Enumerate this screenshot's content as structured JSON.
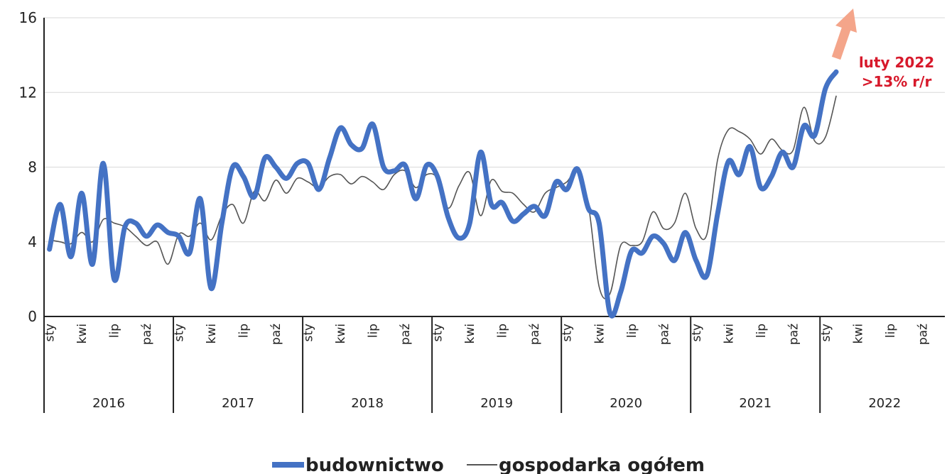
{
  "chart_data": {
    "type": "line",
    "ylim": [
      0,
      16
    ],
    "y_ticks": [
      "0",
      "4",
      "8",
      "12",
      "16"
    ],
    "grid": true,
    "legend_position": "bottom",
    "month_ticks": [
      "sty",
      "kwi",
      "lip",
      "paź"
    ],
    "years": [
      "2016",
      "2017",
      "2018",
      "2019",
      "2020",
      "2021",
      "2022"
    ],
    "x_start": "2016-01",
    "series": [
      {
        "name": "budownictwo",
        "color": "#4472c4",
        "values": [
          3.6,
          6.0,
          3.2,
          6.6,
          2.8,
          8.2,
          2.0,
          4.8,
          5.0,
          4.3,
          4.9,
          4.5,
          4.3,
          3.4,
          6.3,
          1.5,
          5.0,
          8.0,
          7.5,
          6.4,
          8.5,
          8.0,
          7.4,
          8.2,
          8.2,
          6.8,
          8.5,
          10.1,
          9.2,
          9.0,
          10.3,
          8.0,
          7.8,
          8.1,
          6.3,
          8.1,
          7.5,
          5.3,
          4.2,
          5.0,
          8.8,
          6.0,
          6.1,
          5.1,
          5.5,
          5.9,
          5.4,
          7.2,
          6.8,
          7.9,
          5.8,
          5.0,
          0.2,
          1.3,
          3.5,
          3.4,
          4.3,
          3.9,
          3.0,
          4.5,
          3.0,
          2.2,
          5.5,
          8.3,
          7.6,
          9.1,
          6.9,
          7.5,
          8.8,
          8.0,
          10.2,
          9.7,
          12.2,
          13.1
        ],
        "values_note": ""
      },
      {
        "name": "gospodarka ogółem",
        "color": "#555555",
        "values": [
          4.1,
          4.0,
          3.9,
          4.5,
          4.0,
          5.2,
          5.0,
          4.8,
          4.3,
          3.8,
          4.0,
          2.8,
          4.4,
          4.3,
          5.0,
          4.1,
          5.4,
          6.0,
          5.0,
          6.7,
          6.2,
          7.3,
          6.6,
          7.4,
          7.2,
          6.9,
          7.5,
          7.6,
          7.1,
          7.5,
          7.2,
          6.8,
          7.6,
          7.8,
          6.9,
          7.6,
          7.4,
          5.8,
          7.0,
          7.7,
          5.4,
          7.3,
          6.7,
          6.6,
          6.0,
          5.6,
          6.6,
          6.9,
          7.2,
          7.8,
          6.0,
          1.6,
          1.2,
          3.8,
          3.8,
          4.0,
          5.6,
          4.7,
          5.0,
          6.6,
          4.7,
          4.4,
          8.4,
          10.0,
          9.9,
          9.5,
          8.7,
          9.5,
          8.9,
          8.9,
          11.2,
          9.4,
          9.6,
          11.8
        ]
      }
    ],
    "annotation": {
      "line1": "luty 2022",
      "line2": ">13% r/r"
    }
  },
  "colors": {
    "arrow": "#f4a58a",
    "annotation": "#d7192b",
    "grid": "#d9d9d9",
    "axis": "#222222"
  }
}
